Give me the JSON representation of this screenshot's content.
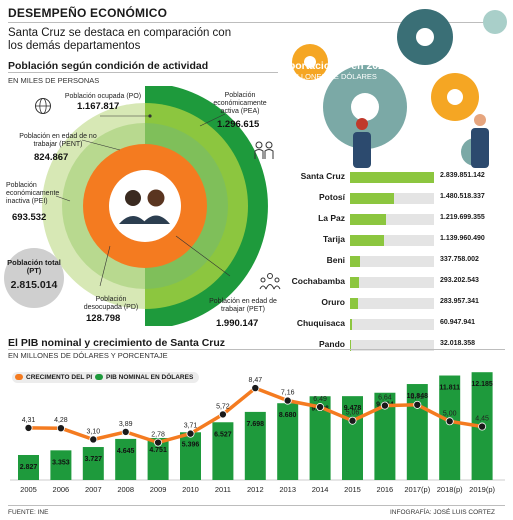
{
  "header": {
    "title": "DESEMPEÑO ECONÓMICO",
    "subtitle": "Santa Cruz se destaca en comparación con los demás departamentos"
  },
  "population": {
    "title": "Población según condición de actividad",
    "unit": "EN MILES DE PERSONAS",
    "po": {
      "label": "Población ocupada (PO)",
      "value": "1.167.817"
    },
    "pent": {
      "label": "Población en edad de no trabajar (PENT)",
      "value": "824.867"
    },
    "pei": {
      "label": "Población económicamente inactiva (PEI)",
      "value": "693.532"
    },
    "pea": {
      "label": "Población económicamente activa (PEA)",
      "value": "1.296.615"
    },
    "pd": {
      "label": "Población desocupada (PD)",
      "value": "128.798"
    },
    "pet": {
      "label": "Población en edad de trabajar (PET)",
      "value": "1.990.147"
    },
    "total": {
      "label": "Población total (PT)",
      "value": "2.815.014"
    },
    "colors": {
      "po": "#f47b20",
      "pent": "#d7e8b5",
      "pei": "#b8d98f",
      "pea": "#8cc63f",
      "pet": "#1e9a3c",
      "pd": "#7fbf5a"
    }
  },
  "exports": {
    "title": "Exportaciones en 2020",
    "unit": "EN MILLONES DE DÓLARES",
    "items": [
      {
        "name": "Santa Cruz",
        "value": 2839.851142,
        "label": "2.839.851.142"
      },
      {
        "name": "Potosí",
        "value": 1480.518337,
        "label": "1.480.518.337"
      },
      {
        "name": "La Paz",
        "value": 1219.699355,
        "label": "1.219.699.355"
      },
      {
        "name": "Tarija",
        "value": 1139.96049,
        "label": "1.139.960.490"
      },
      {
        "name": "Beni",
        "value": 337.758002,
        "label": "337.758.002"
      },
      {
        "name": "Cochabamba",
        "value": 293.202543,
        "label": "293.202.543"
      },
      {
        "name": "Oruro",
        "value": 283.957341,
        "label": "283.957.341"
      },
      {
        "name": "Chuquisaca",
        "value": 60.947941,
        "label": "60.947.941"
      },
      {
        "name": "Pando",
        "value": 32.018358,
        "label": "32.018.358"
      }
    ]
  },
  "chart_data": {
    "type": "bar",
    "title": "El PIB nominal y crecimiento de Santa Cruz",
    "subtitle": "EN MILLONES DE DÓLARES Y PORCENTAJE",
    "categories": [
      "2005",
      "2006",
      "2007",
      "2008",
      "2009",
      "2010",
      "2011",
      "2012",
      "2013",
      "2014",
      "2015",
      "2016",
      "2017",
      "2018",
      "2019"
    ],
    "category_suffix": [
      "",
      "",
      "",
      "",
      "",
      "",
      "",
      "",
      "",
      "",
      "",
      "",
      "(p)",
      "(p)",
      "(p)"
    ],
    "series": [
      {
        "name": "PIB NOMINAL EN DÓLARES",
        "type": "bar",
        "color": "#1e9a3c",
        "values": [
          2827,
          3353,
          3727,
          4645,
          4751,
          5396,
          6527,
          7698,
          8680,
          9466,
          9478,
          9864,
          10848,
          11811,
          12185
        ],
        "labels": [
          "2.827",
          "3.353",
          "3.727",
          "4.645",
          "4.751",
          "5.396",
          "6.527",
          "7.698",
          "8.680",
          "9.466",
          "9.478",
          "9.864",
          "10.848",
          "11.811",
          "12.185"
        ]
      },
      {
        "name": "CRECIMENTO DEL PIB",
        "type": "line",
        "color": "#f47b20",
        "values": [
          4.31,
          4.28,
          3.1,
          3.89,
          2.78,
          3.71,
          5.72,
          8.47,
          7.16,
          6.49,
          5.06,
          6.64,
          6.72,
          5.0,
          4.45
        ],
        "labels": [
          "4,31",
          "4,28",
          "3,10",
          "3,89",
          "2,78",
          "3,71",
          "5,72",
          "8,47",
          "7,16",
          "6,49",
          "5,06",
          "6,64",
          "6,72",
          "5,00",
          "4,45"
        ]
      }
    ]
  },
  "footer": {
    "source": "FUENTE: INE",
    "credit": "INFOGRAFÍA: JOSÉ LUIS CORTEZ"
  }
}
